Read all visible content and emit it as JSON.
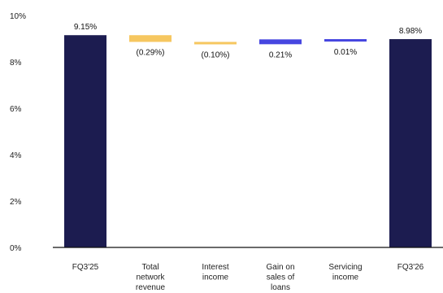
{
  "chart_data": {
    "type": "bar",
    "subtype": "waterfall",
    "title": "",
    "xlabel": "",
    "ylabel": "",
    "ylim": [
      0,
      10
    ],
    "y_ticks": [
      "0%",
      "2%",
      "4%",
      "6%",
      "8%",
      "10%"
    ],
    "grid": false,
    "legend": "none",
    "steps": [
      {
        "category": "FQ3'25",
        "lines": [
          "FQ3'25"
        ],
        "kind": "total",
        "value": 9.15,
        "label": "9.15%",
        "color": "#1c1c50"
      },
      {
        "category": "Total network revenue",
        "lines": [
          "Total",
          "network",
          "revenue"
        ],
        "kind": "delta",
        "value": -0.29,
        "label": "(0.29%)",
        "color": "#f6c760"
      },
      {
        "category": "Interest income",
        "lines": [
          "Interest",
          "income"
        ],
        "kind": "delta",
        "value": -0.1,
        "label": "(0.10%)",
        "color": "#f6c760"
      },
      {
        "category": "Gain on sales of loans",
        "lines": [
          "Gain on",
          "sales of",
          "loans"
        ],
        "kind": "delta",
        "value": 0.21,
        "label": "0.21%",
        "color": "#4646e0"
      },
      {
        "category": "Servicing income",
        "lines": [
          "Servicing",
          "income"
        ],
        "kind": "delta",
        "value": 0.01,
        "label": "0.01%",
        "color": "#4646e0"
      },
      {
        "category": "FQ3'26",
        "lines": [
          "FQ3'26"
        ],
        "kind": "total",
        "value": 8.98,
        "label": "8.98%",
        "color": "#1c1c50"
      }
    ]
  }
}
